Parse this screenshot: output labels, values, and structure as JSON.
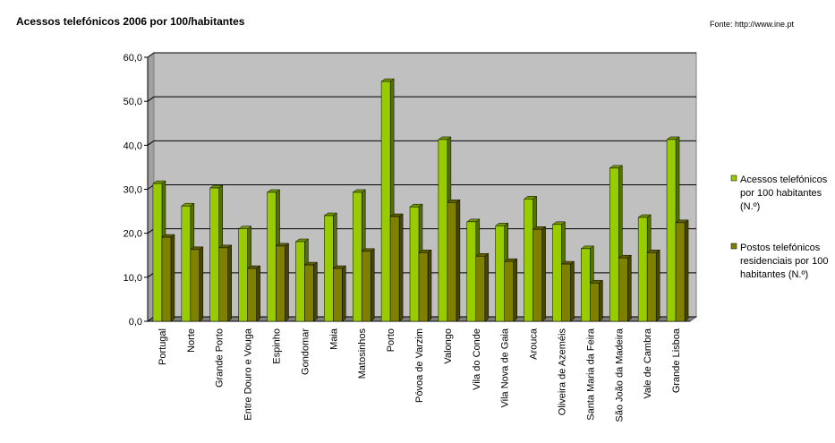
{
  "chart_data": {
    "type": "bar3d",
    "title": "Acessos telefónicos 2006 por 100/habitantes",
    "source": "Fonte: http://www.ine.pt",
    "categories": [
      "Portugal",
      "Norte",
      "Grande Porto",
      "Entre Douro e Vouga",
      "Espinho",
      "Gondomar",
      "Maia",
      "Matosinhos",
      "Porto",
      "Póvoa de Varzim",
      "Valongo",
      "Vila do Conde",
      "Vila Nova de Gaia",
      "Arouca",
      "Oliveira de Azeméis",
      "Santa Maria da Feira",
      "São João da Madeira",
      "Vale de Cambra",
      "Grande Lisboa"
    ],
    "series": [
      {
        "name": "Acessos telefónicos por 100 habitantes (N.º)",
        "color": "#99cc00",
        "values": [
          31.3,
          26.2,
          30.3,
          21.0,
          29.3,
          18.1,
          24.0,
          29.3,
          54.5,
          26.0,
          41.3,
          22.6,
          21.7,
          27.8,
          22.0,
          16.5,
          34.8,
          23.6,
          41.3
        ]
      },
      {
        "name": "Postos telefónicos residenciais por 100 habitantes (N.º)",
        "color": "#808000",
        "values": [
          19.1,
          16.3,
          16.7,
          12.0,
          17.1,
          12.8,
          12.0,
          15.9,
          23.8,
          15.6,
          27.0,
          14.8,
          13.6,
          20.9,
          13.0,
          8.7,
          14.4,
          15.6,
          22.4
        ]
      }
    ],
    "ylim": [
      0,
      60
    ],
    "yticks": [
      {
        "value": 0,
        "label": "0,0"
      },
      {
        "value": 10,
        "label": "10,0"
      },
      {
        "value": 20,
        "label": "20,0"
      },
      {
        "value": 30,
        "label": "30,0"
      },
      {
        "value": 40,
        "label": "40,0"
      },
      {
        "value": 50,
        "label": "50,0"
      },
      {
        "value": 60,
        "label": "60,0"
      }
    ],
    "grid": true,
    "legend": "right"
  }
}
